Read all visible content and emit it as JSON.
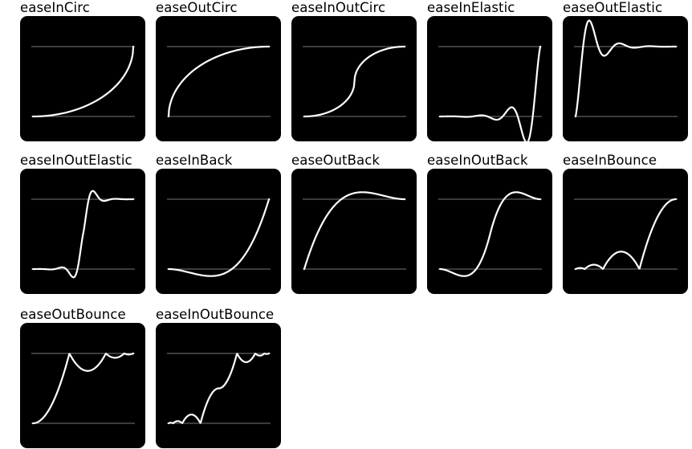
{
  "colors": {
    "tile_background": "#000000",
    "curve": "#ffffff",
    "baseline": "#777777",
    "page_background": "#ffffff"
  },
  "easings": [
    {
      "name": "easeInCirc"
    },
    {
      "name": "easeOutCirc"
    },
    {
      "name": "easeInOutCirc"
    },
    {
      "name": "easeInElastic"
    },
    {
      "name": "easeOutElastic"
    },
    {
      "name": "easeInOutElastic"
    },
    {
      "name": "easeInBack"
    },
    {
      "name": "easeOutBack"
    },
    {
      "name": "easeInOutBack"
    },
    {
      "name": "easeInBounce"
    },
    {
      "name": "easeOutBounce"
    },
    {
      "name": "easeInOutBounce"
    }
  ]
}
